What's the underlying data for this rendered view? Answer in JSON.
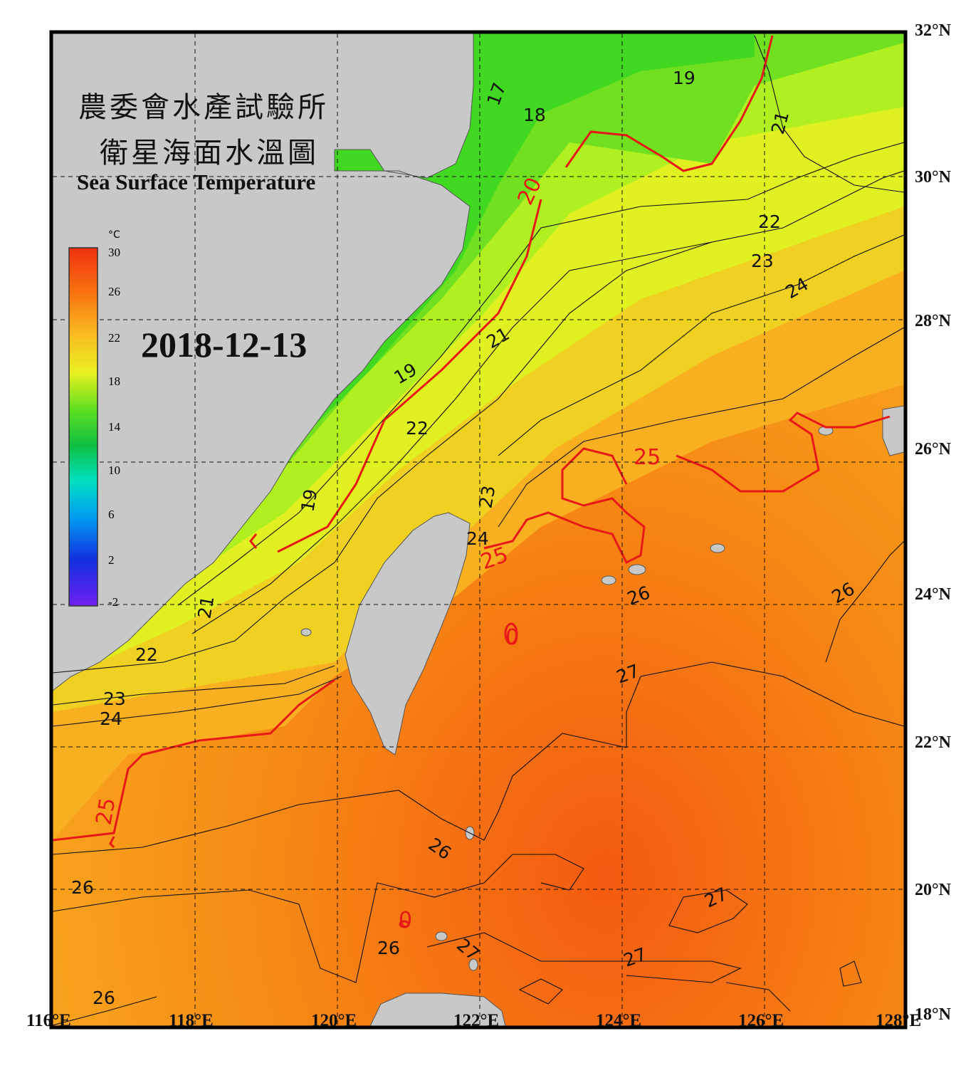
{
  "title": {
    "zh_line1": "農委會水產試驗所",
    "zh_line2": "衛星海面水溫圖",
    "en": "Sea Surface Temperature"
  },
  "date": "2018-12-13",
  "colorbar": {
    "unit": "°C",
    "ticks": [
      "30",
      "26",
      "22",
      "18",
      "14",
      "10",
      "6",
      "2",
      "-2"
    ],
    "colors": [
      "#f03010",
      "#f87010",
      "#f8c020",
      "#e8f020",
      "#60e020",
      "#10c040",
      "#00d0c0",
      "#0090f0",
      "#1020e0",
      "#7020f0"
    ]
  },
  "axes": {
    "lon_labels": [
      "116°E",
      "118°E",
      "120°E",
      "122°E",
      "124°E",
      "126°E",
      "128°E"
    ],
    "lat_labels": [
      "32°N",
      "30°N",
      "28°N",
      "26°N",
      "24°N",
      "22°N",
      "20°N",
      "18°N"
    ]
  },
  "contour_labels": {
    "major": [
      "20",
      "25",
      "25",
      "25",
      "0",
      "0"
    ],
    "minor": [
      "17",
      "18",
      "19",
      "19",
      "19",
      "21",
      "21",
      "21",
      "22",
      "22",
      "22",
      "23",
      "23",
      "23",
      "24",
      "24",
      "24",
      "26",
      "26",
      "26",
      "26",
      "26",
      "26",
      "27",
      "27",
      "27",
      "27"
    ]
  }
}
